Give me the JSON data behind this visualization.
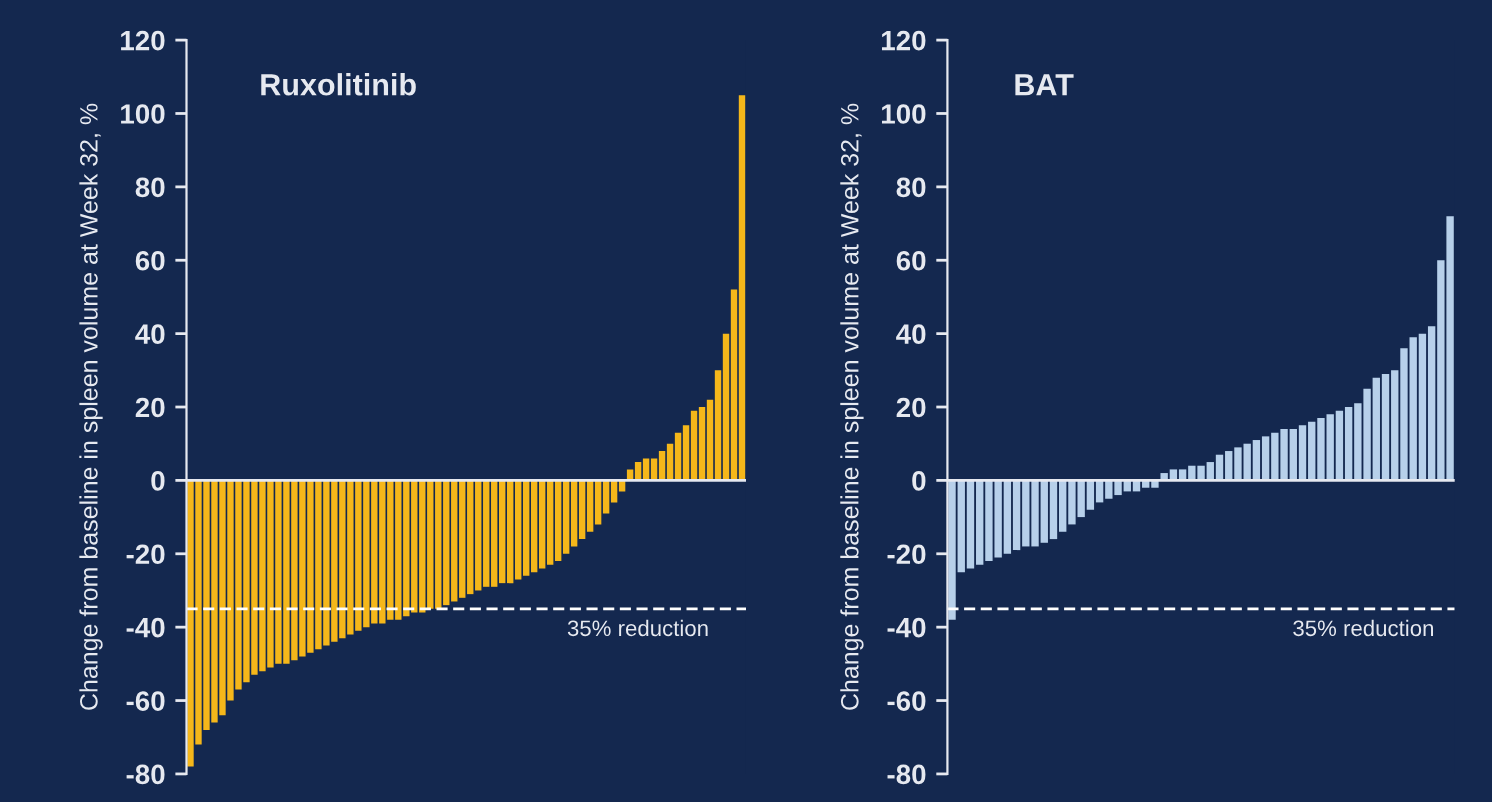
{
  "chart_data": [
    {
      "type": "bar",
      "title": "Ruxolitinib",
      "ylabel": "Change from baseline in spleen volume at Week 32, %",
      "categories": [
        null,
        null,
        null,
        null,
        null,
        null,
        null,
        null,
        null,
        null,
        null,
        null,
        null,
        null,
        null,
        null,
        null,
        null,
        null,
        null,
        null,
        null,
        null,
        null,
        null,
        null,
        null,
        null,
        null,
        null,
        null,
        null,
        null,
        null,
        null,
        null,
        null,
        null,
        null,
        null,
        null,
        null,
        null,
        null,
        null,
        null,
        null,
        null,
        null,
        null,
        null,
        null,
        null,
        null,
        null,
        null,
        null,
        null,
        null,
        null,
        null,
        null,
        null,
        null,
        null,
        null,
        null,
        null,
        null,
        null
      ],
      "values": [
        -78,
        -72,
        -68,
        -66,
        -64,
        -60,
        -57,
        -55,
        -53,
        -52,
        -51,
        -50,
        -50,
        -49,
        -48,
        -47,
        -46,
        -45,
        -44,
        -43,
        -42,
        -41,
        -40,
        -39,
        -39,
        -38,
        -38,
        -37,
        -36,
        -36,
        -35,
        -35,
        -34,
        -33,
        -32,
        -31,
        -30,
        -29,
        -29,
        -28,
        -28,
        -27,
        -26,
        -25,
        -24,
        -23,
        -22,
        -20,
        -18,
        -16,
        -14,
        -12,
        -9,
        -6,
        -3,
        3,
        5,
        6,
        6,
        8,
        10,
        13,
        15,
        19,
        20,
        22,
        30,
        40,
        52,
        105
      ],
      "color": "#f5b71a",
      "ylim": [
        -80,
        120
      ],
      "yticks": [
        -80,
        -60,
        -40,
        -20,
        0,
        20,
        40,
        60,
        80,
        100,
        120
      ],
      "ref_lines": [
        {
          "axis": "y",
          "value": 0,
          "color": "#e6e9f0",
          "line_style": "solid"
        },
        {
          "axis": "y",
          "value": -35,
          "label": "35% reduction",
          "color": "#ffffff",
          "line_style": "dashed"
        }
      ],
      "grid": false,
      "legend": false,
      "tick_labels": "y"
    },
    {
      "type": "bar",
      "title": "BAT",
      "ylabel": "Change from baseline in spleen volume at Week 32, %",
      "categories": [
        null,
        null,
        null,
        null,
        null,
        null,
        null,
        null,
        null,
        null,
        null,
        null,
        null,
        null,
        null,
        null,
        null,
        null,
        null,
        null,
        null,
        null,
        null,
        null,
        null,
        null,
        null,
        null,
        null,
        null,
        null,
        null,
        null,
        null,
        null,
        null,
        null,
        null,
        null,
        null,
        null,
        null,
        null,
        null,
        null,
        null,
        null,
        null,
        null,
        null,
        null,
        null,
        null,
        null,
        null
      ],
      "values": [
        -38,
        -25,
        -24,
        -23,
        -22,
        -21,
        -20,
        -19,
        -18,
        -18,
        -17,
        -16,
        -14,
        -12,
        -10,
        -8,
        -6,
        -5,
        -4,
        -3,
        -3,
        -2,
        -2,
        2,
        3,
        3,
        4,
        4,
        5,
        7,
        8,
        9,
        10,
        11,
        12,
        13,
        14,
        14,
        15,
        16,
        17,
        18,
        19,
        20,
        21,
        25,
        28,
        29,
        30,
        36,
        39,
        40,
        42,
        60,
        72
      ],
      "color": "#b7d0ea",
      "ylim": [
        -80,
        120
      ],
      "yticks": [
        -80,
        -60,
        -40,
        -20,
        0,
        20,
        40,
        60,
        80,
        100,
        120
      ],
      "ref_lines": [
        {
          "axis": "y",
          "value": 0,
          "color": "#e6e9f0",
          "line_style": "solid"
        },
        {
          "axis": "y",
          "value": -35,
          "label": "35% reduction",
          "color": "#ffffff",
          "line_style": "dashed"
        }
      ],
      "grid": false,
      "legend": false,
      "tick_labels": "y"
    }
  ]
}
